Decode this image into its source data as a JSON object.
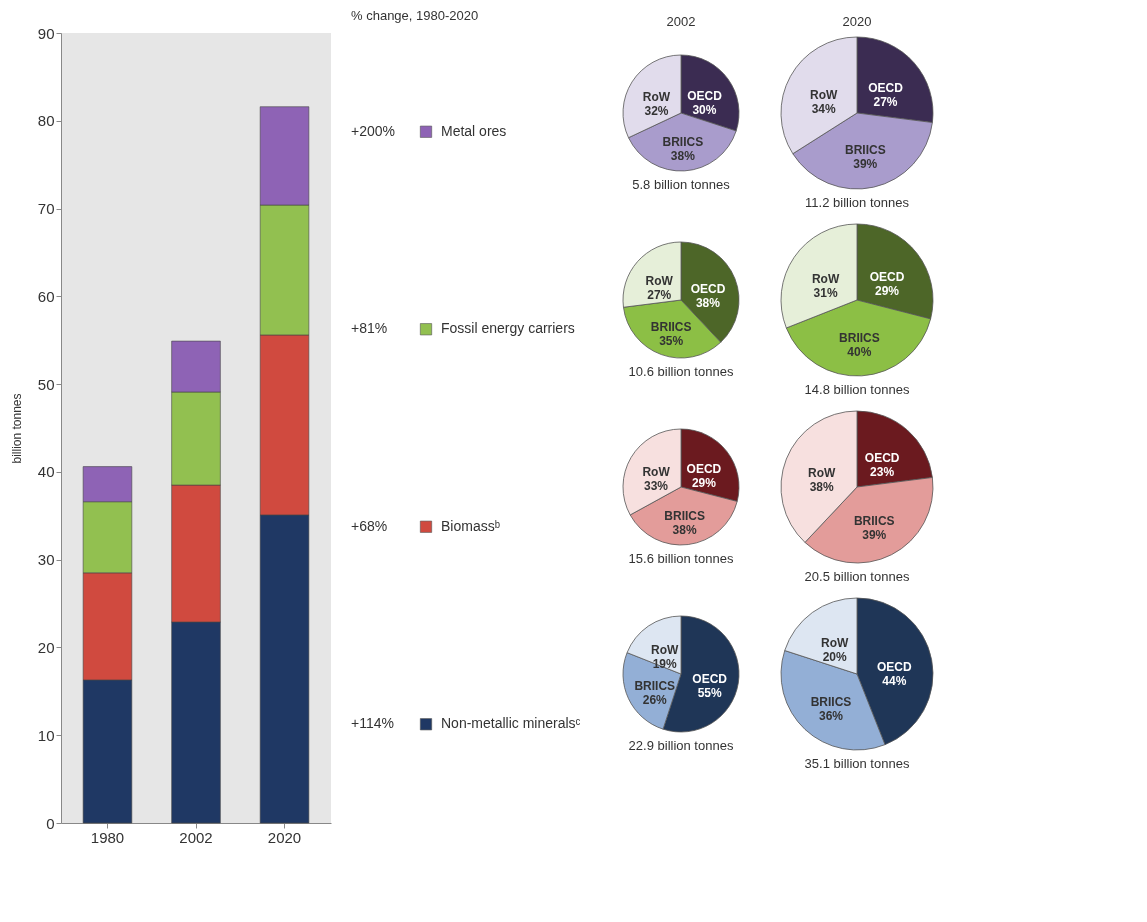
{
  "chart_data": [
    {
      "type": "bar",
      "stacked": true,
      "categories": [
        "1980",
        "2002",
        "2020"
      ],
      "ylabel": "billion tonnes",
      "ylim": [
        0,
        90
      ],
      "yticks": [
        0,
        10,
        20,
        30,
        40,
        50,
        60,
        70,
        80,
        90
      ],
      "legend": "right",
      "legend_title": "% change, 1980-2020",
      "annotations": [
        "+200%",
        "+81%",
        "+68%",
        "+114%"
      ],
      "series": [
        {
          "name": "Non-metallic mineralsᶜ",
          "color": "#1f3864",
          "values": [
            16.3,
            22.9,
            35.1
          ]
        },
        {
          "name": "Biomassᵇ",
          "color": "#d04a3f",
          "values": [
            12.2,
            15.6,
            20.5
          ]
        },
        {
          "name": "Fossil energy carriers",
          "color": "#92c050",
          "values": [
            8.1,
            10.6,
            14.8
          ]
        },
        {
          "name": "Metal ores",
          "color": "#8e63b5",
          "values": [
            4.0,
            5.8,
            11.2
          ]
        }
      ]
    },
    {
      "type": "pie",
      "title": "2002",
      "categories": [
        "OECD",
        "BRIICS",
        "RoW"
      ],
      "values": [
        30,
        38,
        32
      ],
      "value_labels": [
        "30%",
        "38%",
        "32%"
      ],
      "colors": [
        "#3b2c52",
        "#a99ccc",
        "#e1dcec"
      ],
      "annotations": [
        "5.8 billion tonnes"
      ]
    },
    {
      "type": "pie",
      "title": "2020",
      "categories": [
        "OECD",
        "BRIICS",
        "RoW"
      ],
      "values": [
        27,
        39,
        34
      ],
      "value_labels": [
        "27%",
        "39%",
        "34%"
      ],
      "colors": [
        "#3b2c52",
        "#a99ccc",
        "#e1dcec"
      ],
      "annotations": [
        "11.2 billion tonnes"
      ]
    },
    {
      "type": "pie",
      "categories": [
        "OECD",
        "BRIICS",
        "RoW"
      ],
      "values": [
        38,
        35,
        27
      ],
      "value_labels": [
        "38%",
        "35%",
        "27%"
      ],
      "colors": [
        "#4d6628",
        "#8cbf45",
        "#e6efd9"
      ],
      "annotations": [
        "10.6 billion tonnes"
      ]
    },
    {
      "type": "pie",
      "categories": [
        "OECD",
        "BRIICS",
        "RoW"
      ],
      "values": [
        29,
        40,
        31
      ],
      "value_labels": [
        "29%",
        "40%",
        "31%"
      ],
      "colors": [
        "#4d6628",
        "#8cbf45",
        "#e6efd9"
      ],
      "annotations": [
        "14.8 billion tonnes"
      ]
    },
    {
      "type": "pie",
      "categories": [
        "OECD",
        "BRIICS",
        "RoW"
      ],
      "values": [
        29,
        38,
        33
      ],
      "value_labels": [
        "29%",
        "38%",
        "33%"
      ],
      "colors": [
        "#6b1a1f",
        "#e39c9a",
        "#f7e0df"
      ],
      "annotations": [
        "15.6 billion tonnes"
      ]
    },
    {
      "type": "pie",
      "categories": [
        "OECD",
        "BRIICS",
        "RoW"
      ],
      "values": [
        23,
        39,
        38
      ],
      "value_labels": [
        "23%",
        "39%",
        "38%"
      ],
      "colors": [
        "#6b1a1f",
        "#e39c9a",
        "#f7e0df"
      ],
      "annotations": [
        "20.5 billion tonnes"
      ]
    },
    {
      "type": "pie",
      "categories": [
        "OECD",
        "BRIICS",
        "RoW"
      ],
      "values": [
        55,
        26,
        19
      ],
      "value_labels": [
        "55%",
        "26%",
        "19%"
      ],
      "colors": [
        "#1f3657",
        "#93afd6",
        "#dde6f2"
      ],
      "annotations": [
        "22.9 billion tonnes"
      ]
    },
    {
      "type": "pie",
      "categories": [
        "OECD",
        "BRIICS",
        "RoW"
      ],
      "values": [
        44,
        36,
        20
      ],
      "value_labels": [
        "44%",
        "36%",
        "20%"
      ],
      "colors": [
        "#1f3657",
        "#93afd6",
        "#dde6f2"
      ],
      "annotations": [
        "35.1 billion tonnes"
      ]
    }
  ]
}
